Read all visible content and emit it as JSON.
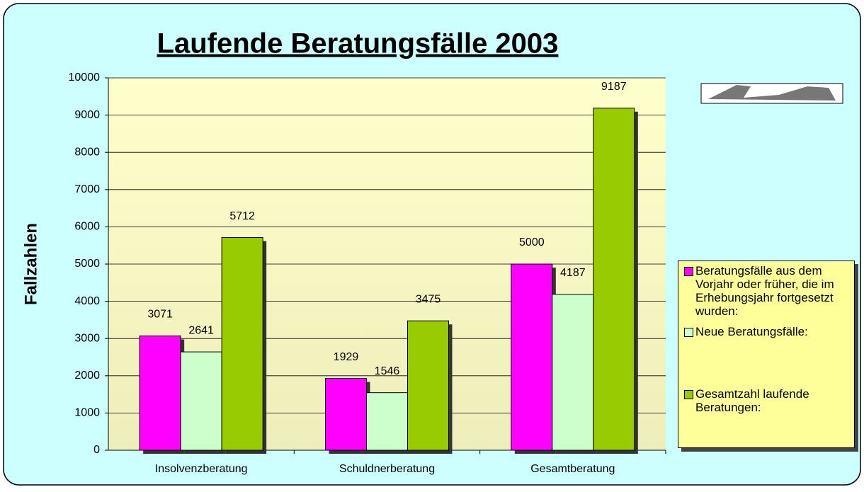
{
  "chart_data": {
    "type": "bar",
    "title": "Laufende Beratungsfälle 2003",
    "y_label": "Fallzahlen",
    "categories": [
      "Insolvenzberatung",
      "Schuldnerberatung",
      "Gesamtberatung"
    ],
    "series": [
      {
        "name": "Beratungsfälle aus dem Vorjahr oder früher, die im Erhebungsjahr fortgesetzt wurden:",
        "color": "#ff00ff",
        "values": [
          3071,
          1929,
          5000
        ]
      },
      {
        "name": "Neue Beratungsfälle:",
        "color": "#ccffcc",
        "values": [
          2641,
          1546,
          4187
        ]
      },
      {
        "name": "Gesamtzahl laufende Beratungen:",
        "color": "#99cc00",
        "values": [
          5712,
          3475,
          9187
        ]
      }
    ],
    "ylim": [
      0,
      10000
    ],
    "yticks": [
      0,
      1000,
      2000,
      3000,
      4000,
      5000,
      6000,
      7000,
      8000,
      9000,
      10000
    ],
    "grid": true
  }
}
